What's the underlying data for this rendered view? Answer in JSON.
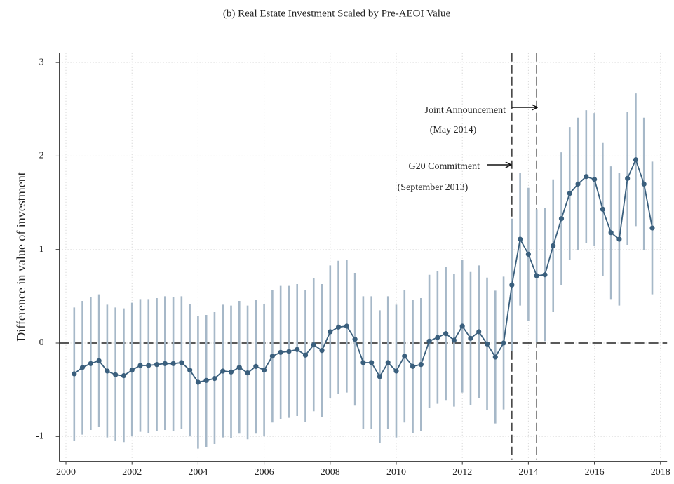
{
  "chart_data": {
    "type": "line",
    "title": "(b) Real Estate Investment Scaled by Pre-AEOI Value",
    "y_label": "Difference in value of investment",
    "xlim": [
      1999.8,
      2018.2
    ],
    "ylim": [
      -1.25,
      3.1
    ],
    "xticks": [
      2000,
      2002,
      2004,
      2006,
      2008,
      2010,
      2012,
      2014,
      2016,
      2018
    ],
    "yticks": [
      -1,
      0,
      1,
      2,
      3
    ],
    "grid": true,
    "hline": 0,
    "vlines": [
      2013.5,
      2014.25
    ],
    "annotations": [
      {
        "text": "Joint Announcement",
        "subtext": "(May 2014)"
      },
      {
        "text": "G20 Commitment",
        "subtext": "(September 2013)"
      }
    ],
    "x": [
      2000.25,
      2000.5,
      2000.75,
      2001,
      2001.25,
      2001.5,
      2001.75,
      2002,
      2002.25,
      2002.5,
      2002.75,
      2003,
      2003.25,
      2003.5,
      2003.75,
      2004,
      2004.25,
      2004.5,
      2004.75,
      2005,
      2005.25,
      2005.5,
      2005.75,
      2006,
      2006.25,
      2006.5,
      2006.75,
      2007,
      2007.25,
      2007.5,
      2007.75,
      2008,
      2008.25,
      2008.5,
      2008.75,
      2009,
      2009.25,
      2009.5,
      2009.75,
      2010,
      2010.25,
      2010.5,
      2010.75,
      2011,
      2011.25,
      2011.5,
      2011.75,
      2012,
      2012.25,
      2012.5,
      2012.75,
      2013,
      2013.25,
      2013.5,
      2013.75,
      2014,
      2014.25,
      2014.5,
      2014.75,
      2015,
      2015.25,
      2015.5,
      2015.75,
      2016,
      2016.25,
      2016.5,
      2016.75,
      2017,
      2017.25,
      2017.5,
      2017.75
    ],
    "series": [
      {
        "color": "#3a5f7d",
        "ci_color": "#a6b8c8",
        "values": [
          -0.33,
          -0.26,
          -0.22,
          -0.19,
          -0.3,
          -0.34,
          -0.35,
          -0.29,
          -0.24,
          -0.24,
          -0.23,
          -0.22,
          -0.22,
          -0.21,
          -0.29,
          -0.42,
          -0.4,
          -0.38,
          -0.3,
          -0.31,
          -0.26,
          -0.32,
          -0.25,
          -0.29,
          -0.14,
          -0.1,
          -0.09,
          -0.07,
          -0.13,
          -0.02,
          -0.08,
          0.12,
          0.17,
          0.18,
          0.04,
          -0.21,
          -0.21,
          -0.36,
          -0.21,
          -0.3,
          -0.14,
          -0.25,
          -0.23,
          0.02,
          0.06,
          0.1,
          0.03,
          0.18,
          0.05,
          0.12,
          -0.01,
          -0.15,
          0.0,
          0.62,
          1.11,
          0.95,
          0.72,
          0.73,
          1.04,
          1.33,
          1.6,
          1.7,
          1.78,
          1.75,
          1.43,
          1.18,
          1.11,
          1.76,
          1.96,
          1.7,
          1.23
        ],
        "ci_upper": [
          0.38,
          0.45,
          0.49,
          0.52,
          0.41,
          0.38,
          0.37,
          0.43,
          0.47,
          0.47,
          0.48,
          0.5,
          0.49,
          0.5,
          0.42,
          0.29,
          0.3,
          0.33,
          0.41,
          0.4,
          0.45,
          0.4,
          0.46,
          0.42,
          0.57,
          0.61,
          0.61,
          0.63,
          0.57,
          0.69,
          0.63,
          0.83,
          0.88,
          0.89,
          0.75,
          0.5,
          0.5,
          0.35,
          0.5,
          0.41,
          0.57,
          0.46,
          0.48,
          0.73,
          0.77,
          0.81,
          0.74,
          0.89,
          0.76,
          0.83,
          0.7,
          0.56,
          0.71,
          1.33,
          1.82,
          1.66,
          1.43,
          1.44,
          1.75,
          2.04,
          2.31,
          2.41,
          2.49,
          2.46,
          2.14,
          1.89,
          1.82,
          2.47,
          2.67,
          2.41,
          1.94
        ],
        "ci_lower": [
          -1.05,
          -0.98,
          -0.93,
          -0.9,
          -1.01,
          -1.05,
          -1.06,
          -1.0,
          -0.95,
          -0.96,
          -0.94,
          -0.93,
          -0.94,
          -0.92,
          -1.0,
          -1.13,
          -1.11,
          -1.08,
          -1.01,
          -1.02,
          -0.97,
          -1.03,
          -0.97,
          -1.0,
          -0.85,
          -0.81,
          -0.8,
          -0.78,
          -0.84,
          -0.73,
          -0.79,
          -0.59,
          -0.54,
          -0.53,
          -0.67,
          -0.92,
          -0.92,
          -1.07,
          -0.92,
          -1.01,
          -0.85,
          -0.96,
          -0.94,
          -0.69,
          -0.65,
          -0.61,
          -0.68,
          -0.53,
          -0.66,
          -0.59,
          -0.72,
          -0.86,
          -0.71,
          -0.09,
          0.4,
          0.24,
          0.01,
          0.02,
          0.33,
          0.62,
          0.89,
          0.99,
          1.07,
          1.04,
          0.72,
          0.47,
          0.4,
          1.05,
          1.25,
          0.99,
          0.52
        ]
      }
    ]
  }
}
